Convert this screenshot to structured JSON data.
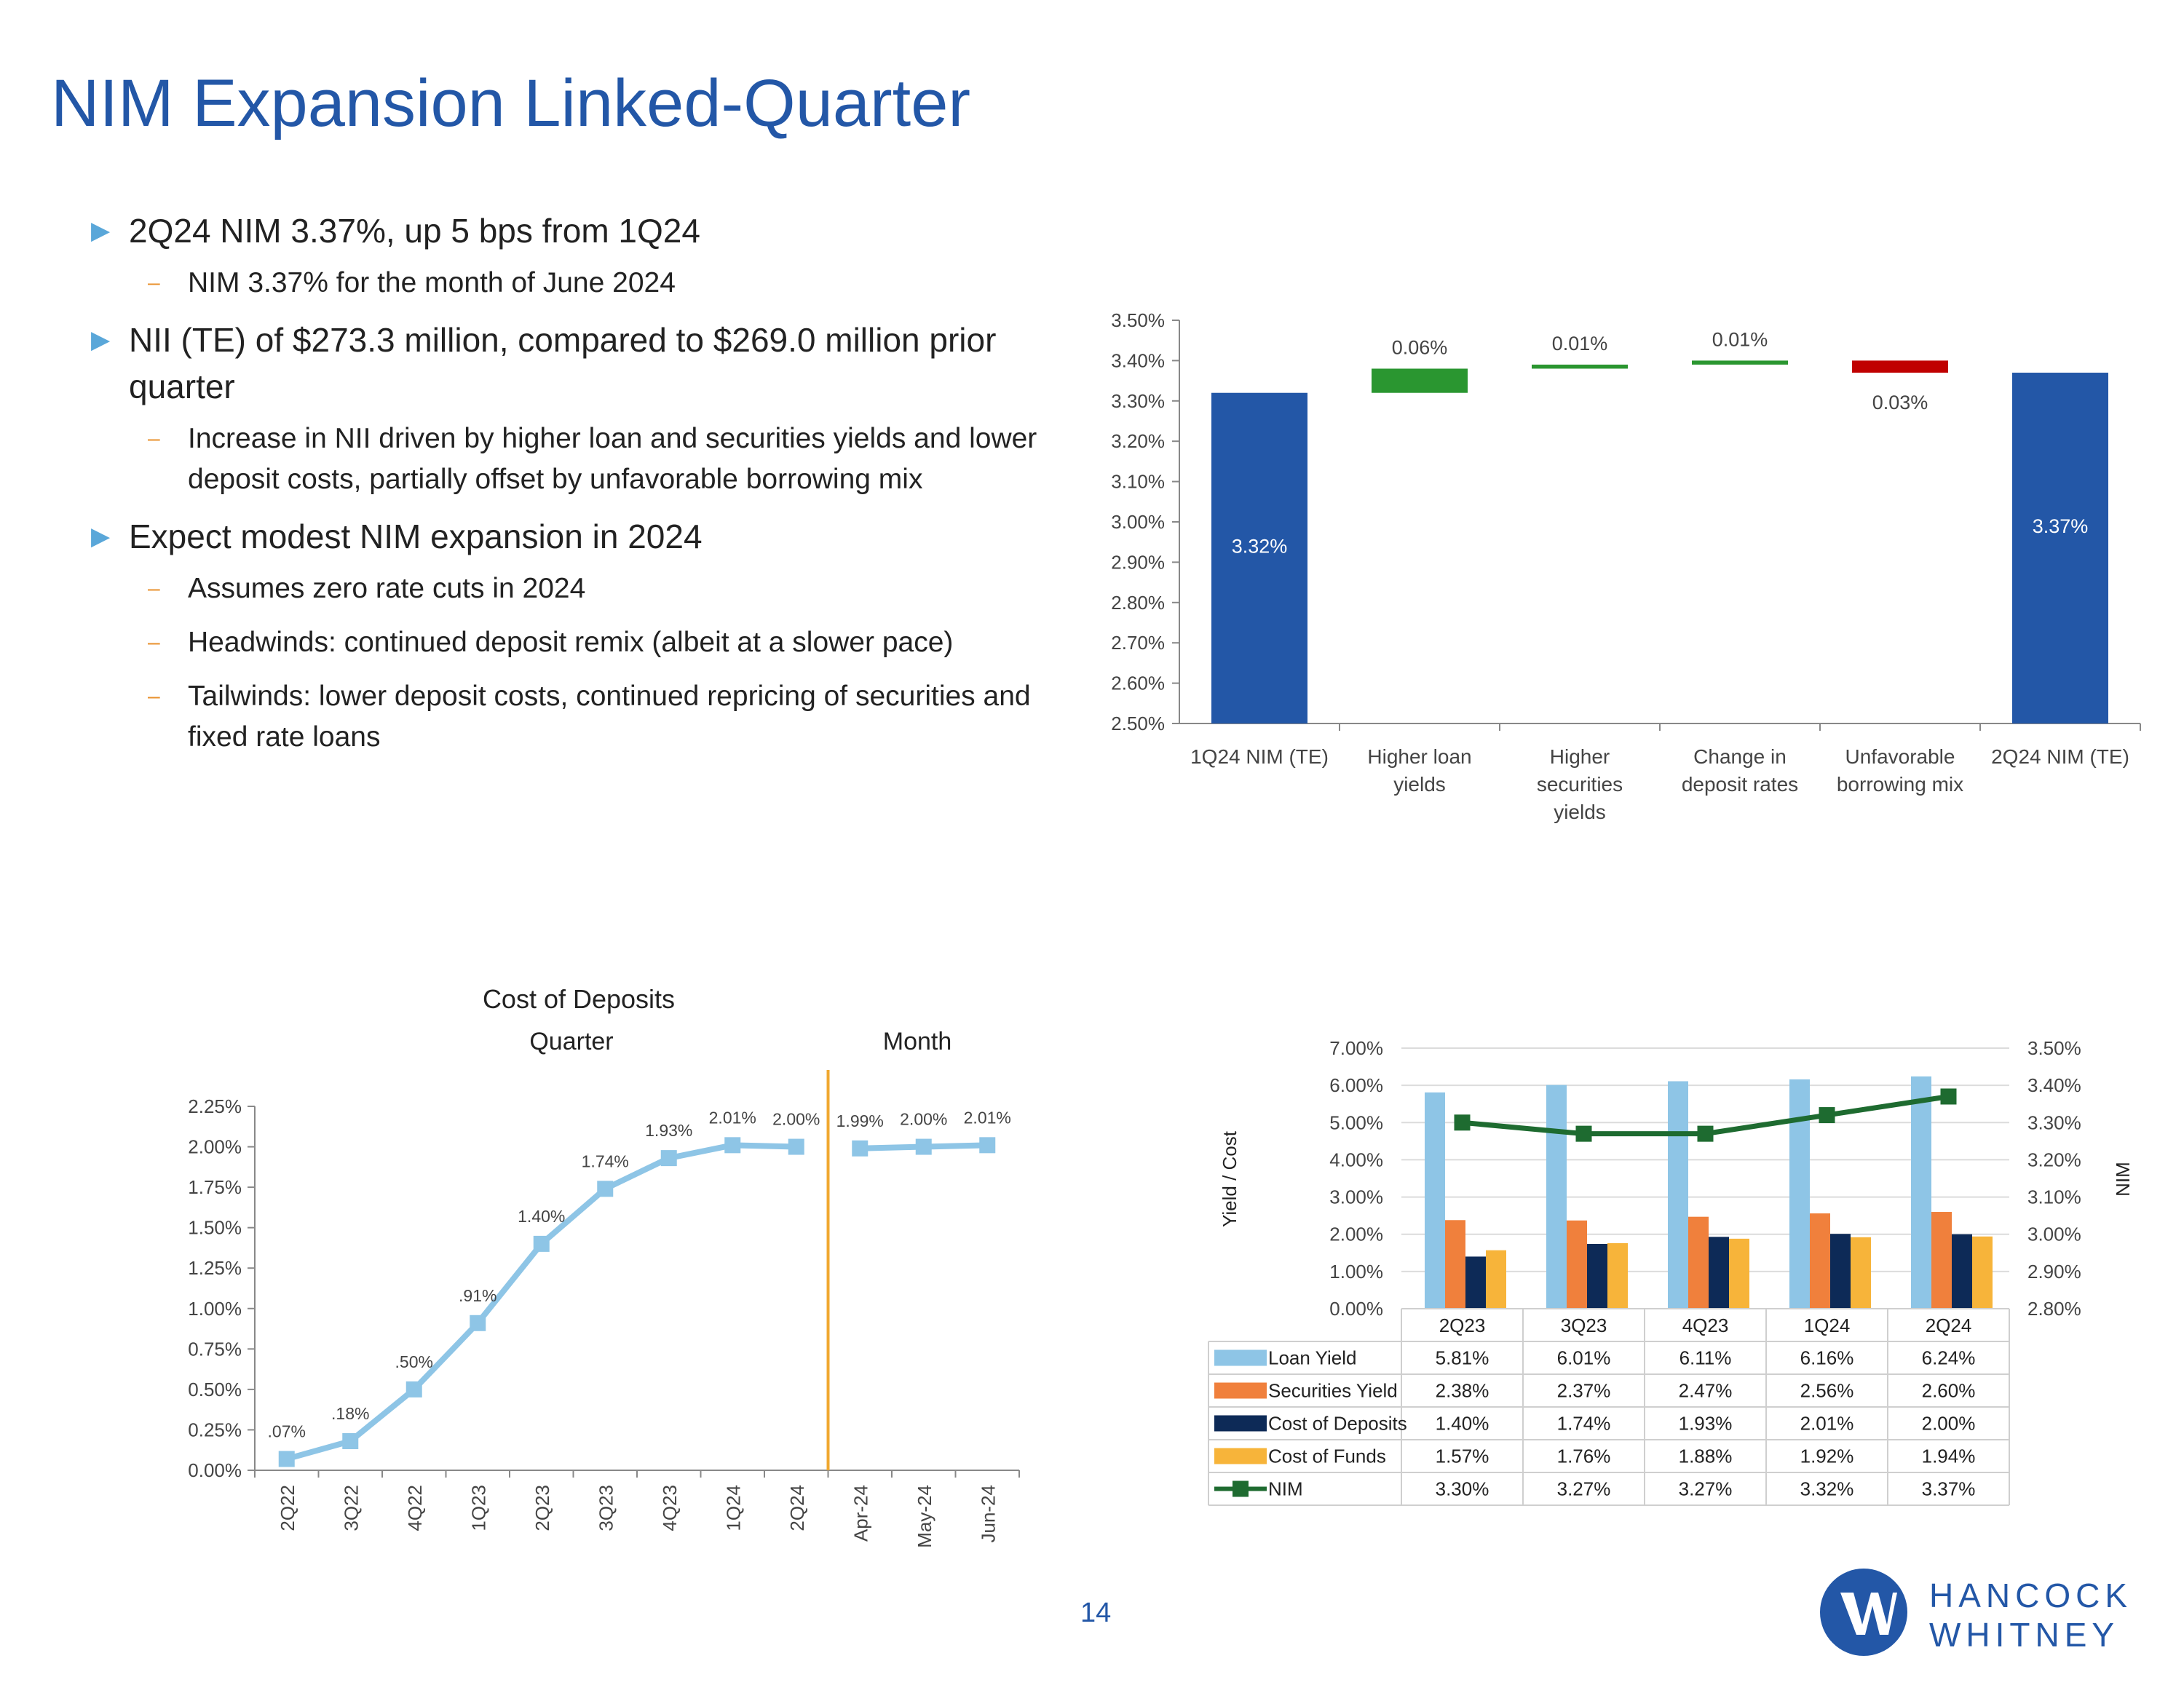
{
  "page": {
    "title": "NIM Expansion Linked-Quarter",
    "page_number": "14",
    "logo": {
      "line1": "HANCOCK",
      "line2": "WHITNEY",
      "color": "#2357a7"
    },
    "bullets": [
      {
        "text": "2Q24 NIM 3.37%, up 5 bps from 1Q24",
        "subs": [
          "NIM 3.37% for the month of June 2024"
        ]
      },
      {
        "text": "NII (TE) of $273.3 million, compared to $269.0 million prior quarter",
        "subs": [
          "Increase in NII driven by higher loan and securities yields and lower deposit costs, partially offset by unfavorable borrowing mix"
        ]
      },
      {
        "text": "Expect modest NIM expansion in 2024",
        "subs": [
          "Assumes zero rate cuts in 2024",
          "Headwinds: continued deposit remix (albeit at a slower pace)",
          "Tailwinds: lower deposit costs, continued repricing of securities and fixed rate loans"
        ]
      }
    ]
  },
  "chart_data": [
    {
      "type": "bar",
      "subtype": "waterfall",
      "categories": [
        "1Q24 NIM (TE)",
        "Higher loan yields",
        "Higher securities yields",
        "Change in deposit rates",
        "Unfavorable borrowing mix",
        "2Q24 NIM (TE)"
      ],
      "bars": [
        {
          "kind": "total",
          "start": 2.5,
          "end": 3.32,
          "label": "3.32%",
          "color": "#2357a7"
        },
        {
          "kind": "increase",
          "start": 3.32,
          "end": 3.38,
          "label": "0.06%",
          "color": "#2a9630"
        },
        {
          "kind": "increase",
          "start": 3.38,
          "end": 3.39,
          "label": "0.01%",
          "color": "#2a9630"
        },
        {
          "kind": "increase",
          "start": 3.39,
          "end": 3.4,
          "label": "0.01%",
          "color": "#2a9630"
        },
        {
          "kind": "decrease",
          "start": 3.4,
          "end": 3.37,
          "label": "0.03%",
          "color": "#c00000"
        },
        {
          "kind": "total",
          "start": 2.5,
          "end": 3.37,
          "label": "3.37%",
          "color": "#2357a7"
        }
      ],
      "ylim": [
        2.5,
        3.5
      ],
      "yticks": [
        "2.50%",
        "2.60%",
        "2.70%",
        "2.80%",
        "2.90%",
        "3.00%",
        "3.10%",
        "3.20%",
        "3.30%",
        "3.40%",
        "3.50%"
      ]
    },
    {
      "type": "line",
      "title": "Cost of Deposits",
      "group_labels": [
        "Quarter",
        "Month"
      ],
      "categories": [
        "2Q22",
        "3Q22",
        "4Q22",
        "1Q23",
        "2Q23",
        "3Q23",
        "4Q23",
        "1Q24",
        "2Q24",
        "Apr-24",
        "May-24",
        "Jun-24"
      ],
      "series": [
        {
          "name": "Quarter",
          "x": [
            "2Q22",
            "3Q22",
            "4Q22",
            "1Q23",
            "2Q23",
            "3Q23",
            "4Q23",
            "1Q24",
            "2Q24"
          ],
          "values": [
            0.07,
            0.18,
            0.5,
            0.91,
            1.4,
            1.74,
            1.93,
            2.01,
            2.0
          ],
          "labels": [
            ".07%",
            ".18%",
            ".50%",
            ".91%",
            "1.40%",
            "1.74%",
            "1.93%",
            "2.01%",
            "2.00%"
          ]
        },
        {
          "name": "Month",
          "x": [
            "Apr-24",
            "May-24",
            "Jun-24"
          ],
          "values": [
            1.99,
            2.0,
            2.01
          ],
          "labels": [
            "1.99%",
            "2.00%",
            "2.01%"
          ]
        }
      ],
      "line_color": "#8ec5e6",
      "divider_color": "#f0a830",
      "ylim": [
        0,
        2.25
      ],
      "yticks": [
        "0.00%",
        "0.25%",
        "0.50%",
        "0.75%",
        "1.00%",
        "1.25%",
        "1.50%",
        "1.75%",
        "2.00%",
        "2.25%"
      ]
    },
    {
      "type": "bar",
      "subtype": "combo",
      "categories": [
        "2Q23",
        "3Q23",
        "4Q23",
        "1Q24",
        "2Q24"
      ],
      "ylabel": "Yield / Cost",
      "y2label": "NIM",
      "ylim": [
        0,
        7
      ],
      "y2lim": [
        2.8,
        3.5
      ],
      "yticks": [
        "0.00%",
        "1.00%",
        "2.00%",
        "3.00%",
        "4.00%",
        "5.00%",
        "6.00%",
        "7.00%"
      ],
      "y2ticks": [
        "2.80%",
        "2.90%",
        "3.00%",
        "3.10%",
        "3.20%",
        "3.30%",
        "3.40%",
        "3.50%"
      ],
      "series": [
        {
          "name": "Loan Yield",
          "type": "bar",
          "color": "#8ec5e6",
          "values": [
            5.81,
            6.01,
            6.11,
            6.16,
            6.24
          ],
          "labels": [
            "5.81%",
            "6.01%",
            "6.11%",
            "6.16%",
            "6.24%"
          ]
        },
        {
          "name": "Securities Yield",
          "type": "bar",
          "color": "#f0803c",
          "values": [
            2.38,
            2.37,
            2.47,
            2.56,
            2.6
          ],
          "labels": [
            "2.38%",
            "2.37%",
            "2.47%",
            "2.56%",
            "2.60%"
          ]
        },
        {
          "name": "Cost of Deposits",
          "type": "bar",
          "color": "#0d2a57",
          "values": [
            1.4,
            1.74,
            1.93,
            2.01,
            2.0
          ],
          "labels": [
            "1.40%",
            "1.74%",
            "1.93%",
            "2.01%",
            "2.00%"
          ]
        },
        {
          "name": "Cost of Funds",
          "type": "bar",
          "color": "#f7b43a",
          "values": [
            1.57,
            1.76,
            1.88,
            1.92,
            1.94
          ],
          "labels": [
            "1.57%",
            "1.76%",
            "1.88%",
            "1.92%",
            "1.94%"
          ]
        },
        {
          "name": "NIM",
          "type": "line",
          "axis": "y2",
          "color": "#1e6b30",
          "values": [
            3.3,
            3.27,
            3.27,
            3.32,
            3.37
          ],
          "labels": [
            "3.30%",
            "3.27%",
            "3.27%",
            "3.32%",
            "3.37%"
          ]
        }
      ]
    }
  ]
}
